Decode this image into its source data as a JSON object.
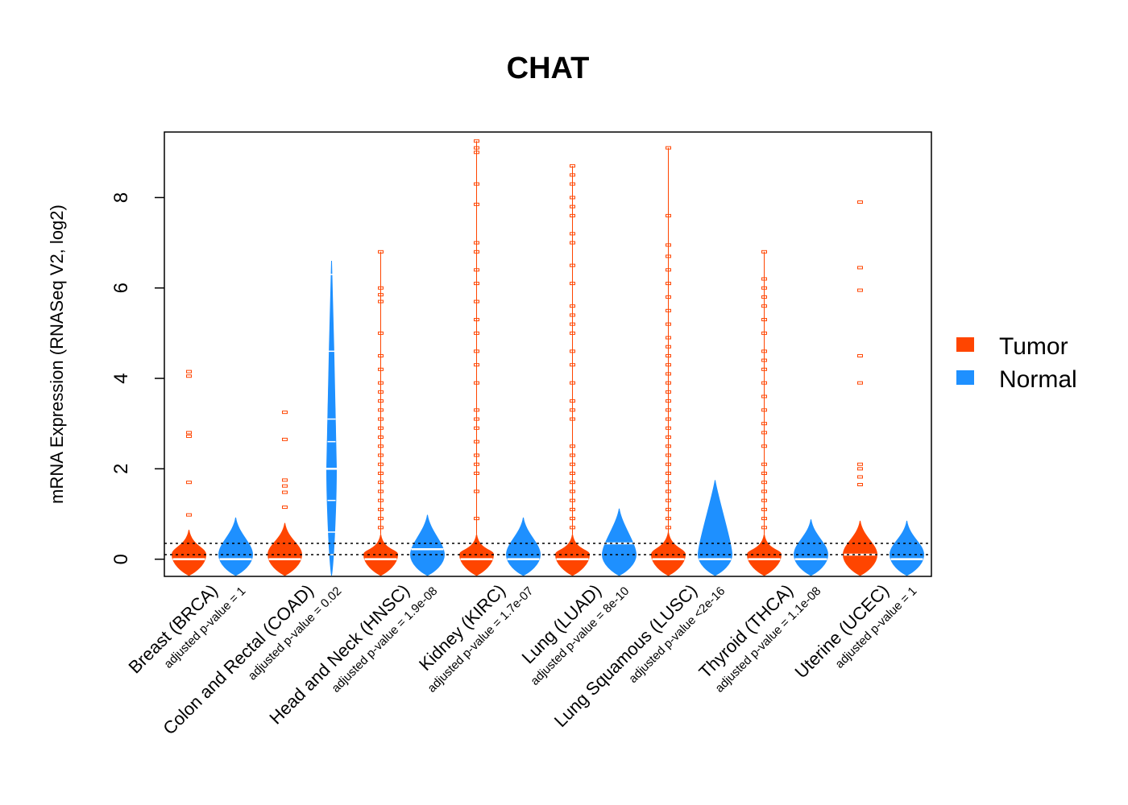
{
  "chart_data": {
    "type": "violin",
    "title": "CHAT",
    "ylabel": "mRNA Expression (RNASeq V2, log2)",
    "ylim": [
      -0.38,
      9.45
    ],
    "yticks": [
      0,
      2,
      4,
      6,
      8
    ],
    "ytick_labels": [
      "0",
      "2",
      "4",
      "6",
      "8"
    ],
    "reference_lines": [
      0.1,
      0.35
    ],
    "legend": {
      "position": "right",
      "entries": [
        {
          "label": "Tumor",
          "color": "#ff4500"
        },
        {
          "label": "Normal",
          "color": "#1e90ff"
        }
      ]
    },
    "colors": {
      "tumor": "#ff4500",
      "normal": "#1e90ff"
    },
    "categories": [
      {
        "name": "Breast (BRCA)",
        "padj": "adjusted p-value = 1",
        "tumor": {
          "median": 0.0,
          "top": 0.65,
          "outliers": [
            0.98,
            1.7,
            2.72,
            2.8,
            4.05,
            4.15
          ]
        },
        "normal": {
          "median": 0.0,
          "top": 0.92,
          "outliers": []
        }
      },
      {
        "name": "Colon and Rectal (COAD)",
        "padj": "adjusted p-value = 0.02",
        "tumor": {
          "median": 0.0,
          "top": 0.8,
          "outliers": [
            1.15,
            1.48,
            1.62,
            1.75,
            2.65,
            3.25
          ]
        },
        "normal": {
          "median": 2.0,
          "top": 6.6,
          "outliers": [],
          "marks": [
            0.1,
            0.6,
            1.3,
            2.0,
            2.6,
            3.1,
            4.6,
            6.3
          ]
        }
      },
      {
        "name": "Head and Neck (HNSC)",
        "padj": "adjusted p-value = 1.9e-08",
        "tumor": {
          "median": 0.0,
          "top": 0.55,
          "outliers": [
            0.7,
            0.9,
            1.1,
            1.3,
            1.5,
            1.7,
            1.9,
            2.1,
            2.3,
            2.5,
            2.7,
            2.9,
            3.1,
            3.3,
            3.5,
            3.7,
            3.9,
            4.2,
            4.5,
            5.0,
            5.7,
            5.85,
            6.0,
            6.8
          ]
        },
        "normal": {
          "median": 0.22,
          "top": 0.98,
          "outliers": []
        }
      },
      {
        "name": "Kidney (KIRC)",
        "padj": "adjusted p-value = 1.7e-07",
        "tumor": {
          "median": 0.0,
          "top": 0.55,
          "outliers": [
            0.9,
            1.5,
            1.9,
            2.1,
            2.3,
            2.6,
            2.9,
            3.1,
            3.3,
            3.9,
            4.3,
            4.6,
            5.0,
            5.3,
            5.7,
            6.1,
            6.4,
            6.8,
            7.0,
            7.85,
            8.3,
            9.0,
            9.1,
            9.25
          ]
        },
        "normal": {
          "median": 0.0,
          "top": 0.92,
          "outliers": []
        }
      },
      {
        "name": "Lung (LUAD)",
        "padj": "adjusted p-value = 8e-10",
        "tumor": {
          "median": 0.0,
          "top": 0.55,
          "outliers": [
            0.7,
            0.9,
            1.1,
            1.3,
            1.5,
            1.7,
            1.9,
            2.1,
            2.3,
            2.5,
            3.1,
            3.3,
            3.5,
            3.9,
            4.3,
            4.6,
            5.0,
            5.2,
            5.4,
            5.6,
            6.1,
            6.5,
            7.0,
            7.2,
            7.6,
            7.8,
            8.0,
            8.3,
            8.5,
            8.7
          ]
        },
        "normal": {
          "median": 0.35,
          "top": 1.12,
          "outliers": []
        }
      },
      {
        "name": "Lung Squamous (LUSC)",
        "padj": "adjusted p-value <2e-16",
        "tumor": {
          "median": 0.0,
          "top": 0.6,
          "outliers": [
            0.7,
            0.9,
            1.1,
            1.3,
            1.5,
            1.7,
            1.9,
            2.1,
            2.3,
            2.5,
            2.7,
            2.9,
            3.1,
            3.3,
            3.5,
            3.7,
            3.9,
            4.1,
            4.3,
            4.5,
            4.7,
            4.9,
            5.2,
            5.5,
            5.8,
            6.1,
            6.4,
            6.7,
            6.95,
            7.6,
            9.1
          ]
        },
        "normal": {
          "median": 0.0,
          "top": 1.75,
          "outliers": [
            1.38
          ]
        }
      },
      {
        "name": "Thyroid (THCA)",
        "padj": "adjusted p-value = 1.1e-08",
        "tumor": {
          "median": 0.0,
          "top": 0.55,
          "outliers": [
            0.7,
            0.9,
            1.1,
            1.3,
            1.5,
            1.7,
            1.9,
            2.1,
            2.5,
            2.8,
            3.0,
            3.3,
            3.6,
            3.9,
            4.2,
            4.4,
            4.6,
            5.0,
            5.3,
            5.6,
            5.8,
            6.0,
            6.2,
            6.8
          ]
        },
        "normal": {
          "median": 0.0,
          "top": 0.88,
          "outliers": []
        }
      },
      {
        "name": "Uterine (UCEC)",
        "padj": "adjusted p-value = 1",
        "tumor": {
          "median": 0.1,
          "top": 0.85,
          "outliers": [
            1.65,
            1.82,
            2.0,
            2.1,
            3.9,
            4.5,
            5.95,
            6.45,
            7.9
          ]
        },
        "normal": {
          "median": 0.0,
          "top": 0.85,
          "outliers": []
        }
      }
    ]
  }
}
